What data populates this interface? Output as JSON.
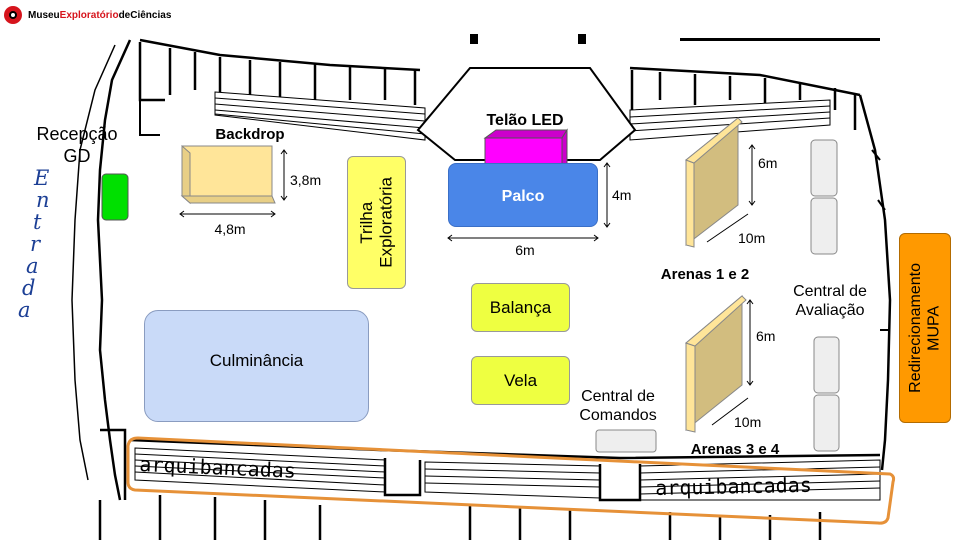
{
  "logo": {
    "part1": "Museu",
    "part2": "Exploratório",
    "part3": "deCiências"
  },
  "labels": {
    "recepcao": "Recepção\nGD",
    "entrada": [
      "E",
      "n",
      "t",
      "r",
      "a",
      "d",
      "a"
    ],
    "backdrop": "Backdrop",
    "backdrop_h": "3,8m",
    "backdrop_w": "4,8m",
    "trilha": "Trilha\nExploratória",
    "telao": "Telão LED",
    "palco": "Palco",
    "palco_h": "4m",
    "palco_w": "6m",
    "arena12_h": "6m",
    "arena12_d": "10m",
    "arenas12": "Arenas 1 e 2",
    "balanca": "Balança",
    "vela": "Vela",
    "culminancia": "Culminância",
    "central_avaliacao": "Central de\nAvaliação",
    "redirecionamento": "Redirecionamento\nMUPA",
    "arena34_h": "6m",
    "arena34_d": "10m",
    "central_comandos": "Central de\nComandos",
    "arenas34": "Arenas 3 e 4",
    "arquibancadas_left": "arquibancadas",
    "arquibancadas_right": "arquibancadas"
  },
  "colors": {
    "backdrop": "#ffe599",
    "trilha": "#ffff66",
    "palco": "#4a86e8",
    "telao": "#ff00ff",
    "arena": "#d2bd7f",
    "arena_face": "#ffe599",
    "culminancia": "#c9daf8",
    "balanca": "#eeff41",
    "mupa": "#ff9900",
    "recepcao_box": "#00e000",
    "arquibancadas_outline": "#e69138",
    "central": "#eeeeee",
    "entrada_text": "#1c3f95"
  }
}
